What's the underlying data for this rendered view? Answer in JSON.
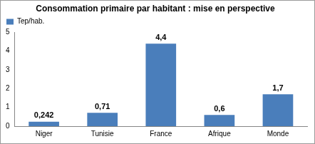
{
  "chart_data": {
    "type": "bar",
    "title": "Consommation primaire par habitant : mise en perspective",
    "categories": [
      "Niger",
      "Tunisie",
      "France",
      "Afrique",
      "Monde"
    ],
    "series": [
      {
        "name": "Tep/hab.",
        "color": "#4a7ebb",
        "values": [
          0.242,
          0.71,
          4.4,
          0.6,
          1.7
        ],
        "value_labels": [
          "0,242",
          "0,71",
          "4,4",
          "0,6",
          "1,7"
        ]
      }
    ],
    "ylim": [
      0,
      5
    ],
    "yticks": [
      0,
      1,
      2,
      3,
      4,
      5
    ],
    "grid": false,
    "legend": "top-left",
    "data_labels": true
  }
}
